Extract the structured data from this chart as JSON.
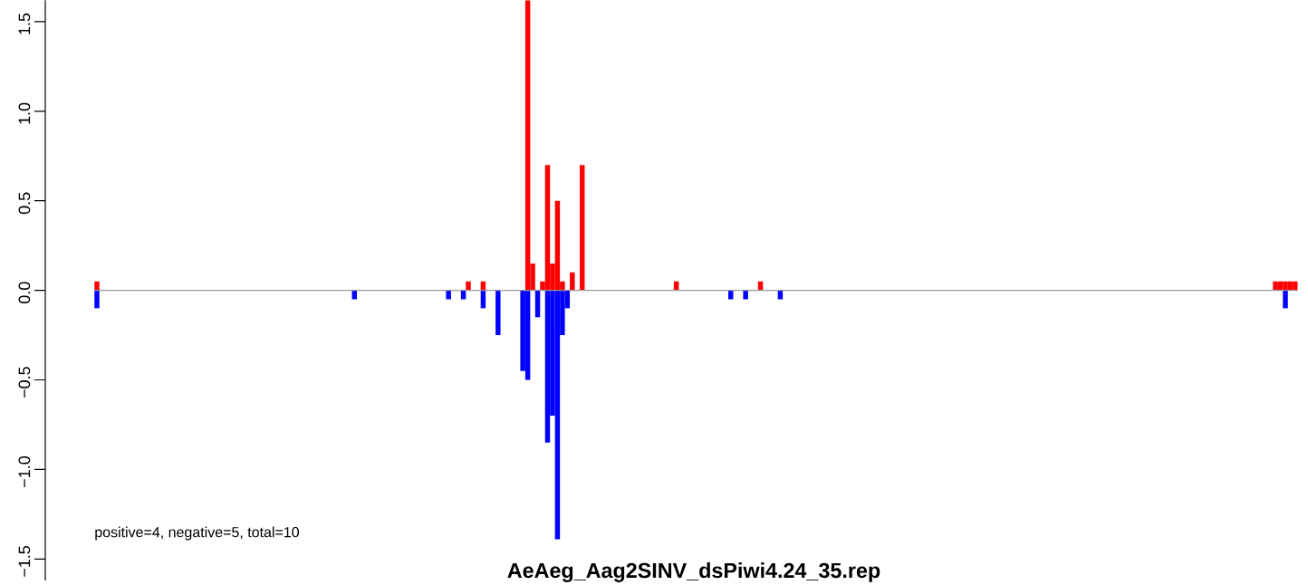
{
  "chart_data": {
    "type": "bar",
    "title": "AeAeg_Aag2SINV_dsPiwi4.24_35.rep",
    "annotations": [
      "positive=4, negative=5, total=10"
    ],
    "categories": [
      null,
      null,
      null,
      null,
      null,
      null,
      null,
      null,
      null,
      null,
      null,
      null,
      null,
      null,
      null,
      null,
      null,
      null,
      null,
      null,
      null,
      null,
      null,
      null,
      null,
      null,
      null,
      null,
      null,
      null,
      null,
      null,
      null,
      null,
      null,
      null,
      null,
      null,
      null,
      null,
      null,
      null,
      null,
      null,
      null,
      null,
      null,
      null,
      null,
      null,
      null,
      null,
      null,
      null,
      null,
      null,
      null,
      null,
      null,
      null,
      null,
      null,
      null,
      null,
      null,
      null,
      null,
      null,
      null,
      null,
      null,
      null,
      null,
      null,
      null,
      null,
      null,
      null,
      null,
      null,
      null,
      null,
      null,
      null,
      null,
      null,
      null,
      null,
      null,
      null,
      null,
      null,
      null,
      null,
      null,
      null,
      null,
      null,
      null,
      null,
      null,
      null,
      null,
      null,
      null,
      null,
      null,
      null,
      null,
      null,
      null,
      null,
      null,
      null,
      null,
      null,
      null,
      null,
      null,
      null,
      null,
      null,
      null,
      null,
      null,
      null,
      null,
      null,
      null,
      null,
      null,
      null,
      null,
      null,
      null,
      null,
      null,
      null,
      null,
      null,
      null,
      null,
      null,
      null,
      null,
      null,
      null,
      null,
      null,
      null,
      null,
      null,
      null,
      null,
      null,
      null,
      null,
      null,
      null,
      null,
      null,
      null,
      null,
      null,
      null,
      null,
      null,
      null,
      null,
      null,
      null,
      null,
      null,
      null,
      null,
      null,
      null,
      null,
      null,
      null,
      null,
      null,
      null,
      null,
      null,
      null,
      null,
      null,
      null,
      null,
      null,
      null,
      null,
      null,
      null,
      null,
      null,
      null,
      null,
      null,
      null,
      null,
      null,
      null,
      null,
      null,
      null,
      null,
      null,
      null,
      null,
      null,
      null,
      null,
      null,
      null,
      null,
      null,
      null,
      null,
      null,
      null,
      null,
      null,
      null,
      null,
      null,
      null,
      null,
      null,
      null,
      null,
      null,
      null,
      null,
      null,
      null,
      null,
      null,
      null,
      null,
      null,
      null
    ],
    "series": [
      {
        "color": "#ff0000",
        "values": [
          0.05,
          null,
          null,
          null,
          null,
          null,
          null,
          null,
          null,
          null,
          null,
          null,
          null,
          null,
          null,
          null,
          null,
          null,
          null,
          null,
          null,
          null,
          null,
          null,
          null,
          null,
          null,
          null,
          null,
          null,
          null,
          null,
          null,
          null,
          null,
          null,
          null,
          null,
          null,
          null,
          null,
          null,
          null,
          null,
          null,
          null,
          null,
          null,
          null,
          null,
          null,
          null,
          null,
          null,
          null,
          null,
          null,
          null,
          null,
          null,
          null,
          null,
          null,
          null,
          null,
          null,
          null,
          null,
          null,
          null,
          null,
          null,
          null,
          null,
          null,
          0.05,
          null,
          null,
          0.05,
          null,
          null,
          null,
          null,
          null,
          null,
          null,
          null,
          1.62,
          0.15,
          null,
          0.05,
          0.7,
          0.15,
          0.5,
          0.05,
          null,
          0.1,
          null,
          0.7,
          null,
          null,
          null,
          null,
          null,
          null,
          null,
          null,
          null,
          null,
          null,
          null,
          null,
          null,
          null,
          null,
          null,
          null,
          0.05,
          null,
          null,
          null,
          null,
          null,
          null,
          null,
          null,
          null,
          null,
          null,
          null,
          null,
          null,
          null,
          null,
          0.05,
          null,
          null,
          null,
          null,
          null,
          null,
          null,
          null,
          null,
          null,
          null,
          null,
          null,
          null,
          null,
          null,
          null,
          null,
          null,
          null,
          null,
          null,
          null,
          null,
          null,
          null,
          null,
          null,
          null,
          null,
          null,
          null,
          null,
          null,
          null,
          null,
          null,
          null,
          null,
          null,
          null,
          null,
          null,
          null,
          null,
          null,
          null,
          null,
          null,
          null,
          null,
          null,
          null,
          null,
          null,
          null,
          null,
          null,
          null,
          null,
          null,
          null,
          null,
          null,
          null,
          null,
          null,
          null,
          null,
          null,
          null,
          null,
          null,
          null,
          null,
          null,
          null,
          null,
          null,
          null,
          null,
          null,
          null,
          null,
          null,
          null,
          null,
          null,
          null,
          null,
          null,
          null,
          null,
          null,
          null,
          null,
          null,
          null,
          null,
          null,
          null,
          null,
          null,
          0.05,
          0.05,
          0.05,
          0.05,
          0.05
        ]
      },
      {
        "color": "#0000ff",
        "values": [
          -0.1,
          null,
          null,
          null,
          null,
          null,
          null,
          null,
          null,
          null,
          null,
          null,
          null,
          null,
          null,
          null,
          null,
          null,
          null,
          null,
          null,
          null,
          null,
          null,
          null,
          null,
          null,
          null,
          null,
          null,
          null,
          null,
          null,
          null,
          null,
          null,
          null,
          null,
          null,
          null,
          null,
          null,
          null,
          null,
          null,
          null,
          null,
          null,
          null,
          null,
          null,
          null,
          -0.05,
          null,
          null,
          null,
          null,
          null,
          null,
          null,
          null,
          null,
          null,
          null,
          null,
          null,
          null,
          null,
          null,
          null,
          null,
          -0.05,
          null,
          null,
          -0.05,
          null,
          null,
          null,
          -0.1,
          null,
          null,
          -0.25,
          null,
          null,
          null,
          null,
          -0.45,
          -0.5,
          null,
          -0.15,
          null,
          -0.85,
          -0.7,
          -1.39,
          -0.25,
          -0.1,
          null,
          null,
          null,
          null,
          null,
          null,
          null,
          null,
          null,
          null,
          null,
          null,
          null,
          null,
          null,
          null,
          null,
          null,
          null,
          null,
          null,
          null,
          null,
          null,
          null,
          null,
          null,
          null,
          null,
          null,
          null,
          null,
          -0.05,
          null,
          null,
          -0.05,
          null,
          null,
          null,
          null,
          null,
          null,
          -0.05,
          null,
          null,
          null,
          null,
          null,
          null,
          null,
          null,
          null,
          null,
          null,
          null,
          null,
          null,
          null,
          null,
          null,
          null,
          null,
          null,
          null,
          null,
          null,
          null,
          null,
          null,
          null,
          null,
          null,
          null,
          null,
          null,
          null,
          null,
          null,
          null,
          null,
          null,
          null,
          null,
          null,
          null,
          null,
          null,
          null,
          null,
          null,
          null,
          null,
          null,
          null,
          null,
          null,
          null,
          null,
          null,
          null,
          null,
          null,
          null,
          null,
          null,
          null,
          null,
          null,
          null,
          null,
          null,
          null,
          null,
          null,
          null,
          null,
          null,
          null,
          null,
          null,
          null,
          null,
          null,
          null,
          null,
          null,
          null,
          null,
          null,
          null,
          null,
          null,
          null,
          null,
          null,
          null,
          null,
          null,
          null,
          null,
          null,
          null,
          null,
          null,
          -0.1,
          null,
          null
        ]
      }
    ],
    "ylim": [
      -1.62,
      1.62
    ],
    "yticks": [
      {
        "value": -1.5,
        "label": "−1.5"
      },
      {
        "value": -1.0,
        "label": "−1.0"
      },
      {
        "value": -0.5,
        "label": "−0.5"
      },
      {
        "value": 0.0,
        "label": "0.0"
      },
      {
        "value": 0.5,
        "label": "0.5"
      },
      {
        "value": 1.0,
        "label": "1.0"
      },
      {
        "value": 1.5,
        "label": "1.5"
      }
    ],
    "ref_lines": [
      {
        "axis": "y",
        "value": 0,
        "color": "#999999"
      }
    ]
  }
}
